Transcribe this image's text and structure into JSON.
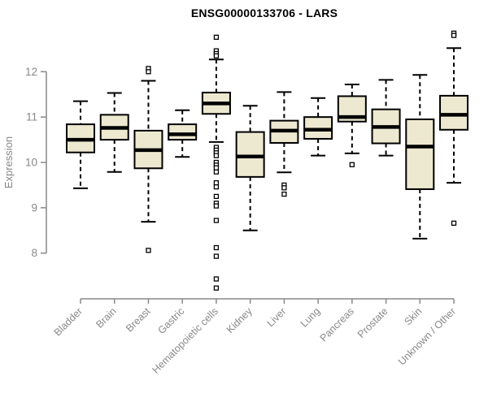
{
  "colors": {
    "box_fill": "#EDE8D0",
    "box_stroke": "#000000",
    "median_color": "#000000",
    "axis_color": "#888888",
    "title_color": "#000000",
    "background": "#FFFFFF"
  },
  "chart_data": {
    "type": "boxplot",
    "title": "ENSG00000133706 - LARS",
    "xlabel": "",
    "ylabel": "Expression",
    "yticks": [
      8,
      9,
      10,
      11,
      12
    ],
    "ylim": [
      7.0,
      13.1
    ],
    "grid": false,
    "legend": "none",
    "categories": [
      "Bladder",
      "Brain",
      "Breast",
      "Gastric",
      "Hematopoietic cells",
      "Kidney",
      "Liver",
      "Lung",
      "Pancreas",
      "Prostate",
      "Skin",
      "Unknown / Other"
    ],
    "boxes": [
      {
        "category": "Bladder",
        "low": 9.43,
        "q1": 10.22,
        "median": 10.5,
        "q3": 10.84,
        "high": 11.35,
        "outliers": []
      },
      {
        "category": "Brain",
        "low": 9.79,
        "q1": 10.5,
        "median": 10.76,
        "q3": 11.05,
        "high": 11.53,
        "outliers": []
      },
      {
        "category": "Breast",
        "low": 8.69,
        "q1": 9.87,
        "median": 10.27,
        "q3": 10.7,
        "high": 11.8,
        "outliers": [
          12.07,
          12.0,
          8.06
        ]
      },
      {
        "category": "Gastric",
        "low": 10.12,
        "q1": 10.5,
        "median": 10.62,
        "q3": 10.84,
        "high": 11.15,
        "outliers": []
      },
      {
        "category": "Hematopoietic cells",
        "low": 10.45,
        "q1": 11.07,
        "median": 11.3,
        "q3": 11.54,
        "high": 12.27,
        "outliers": [
          12.76,
          12.46,
          12.4,
          12.35,
          10.33,
          10.27,
          10.21,
          10.15,
          10.0,
          9.94,
          9.88,
          9.79,
          9.55,
          9.46,
          9.25,
          9.1,
          9.04,
          8.72,
          8.12,
          7.93,
          7.43,
          7.23
        ]
      },
      {
        "category": "Kidney",
        "low": 8.5,
        "q1": 9.68,
        "median": 10.13,
        "q3": 10.67,
        "high": 11.25,
        "outliers": []
      },
      {
        "category": "Liver",
        "low": 9.78,
        "q1": 10.43,
        "median": 10.7,
        "q3": 10.92,
        "high": 11.55,
        "outliers": [
          9.5,
          9.44,
          9.3
        ]
      },
      {
        "category": "Lung",
        "low": 10.15,
        "q1": 10.52,
        "median": 10.72,
        "q3": 11.0,
        "high": 11.42,
        "outliers": []
      },
      {
        "category": "Pancreas",
        "low": 10.2,
        "q1": 10.9,
        "median": 11.0,
        "q3": 11.46,
        "high": 11.72,
        "outliers": [
          9.95
        ]
      },
      {
        "category": "Prostate",
        "low": 10.15,
        "q1": 10.42,
        "median": 10.78,
        "q3": 11.17,
        "high": 11.82,
        "outliers": []
      },
      {
        "category": "Skin",
        "low": 8.32,
        "q1": 9.41,
        "median": 10.35,
        "q3": 10.95,
        "high": 11.93,
        "outliers": []
      },
      {
        "category": "Unknown / Other",
        "low": 9.55,
        "q1": 10.72,
        "median": 11.05,
        "q3": 11.47,
        "high": 12.52,
        "outliers": [
          12.85,
          12.8,
          8.66
        ]
      }
    ]
  }
}
